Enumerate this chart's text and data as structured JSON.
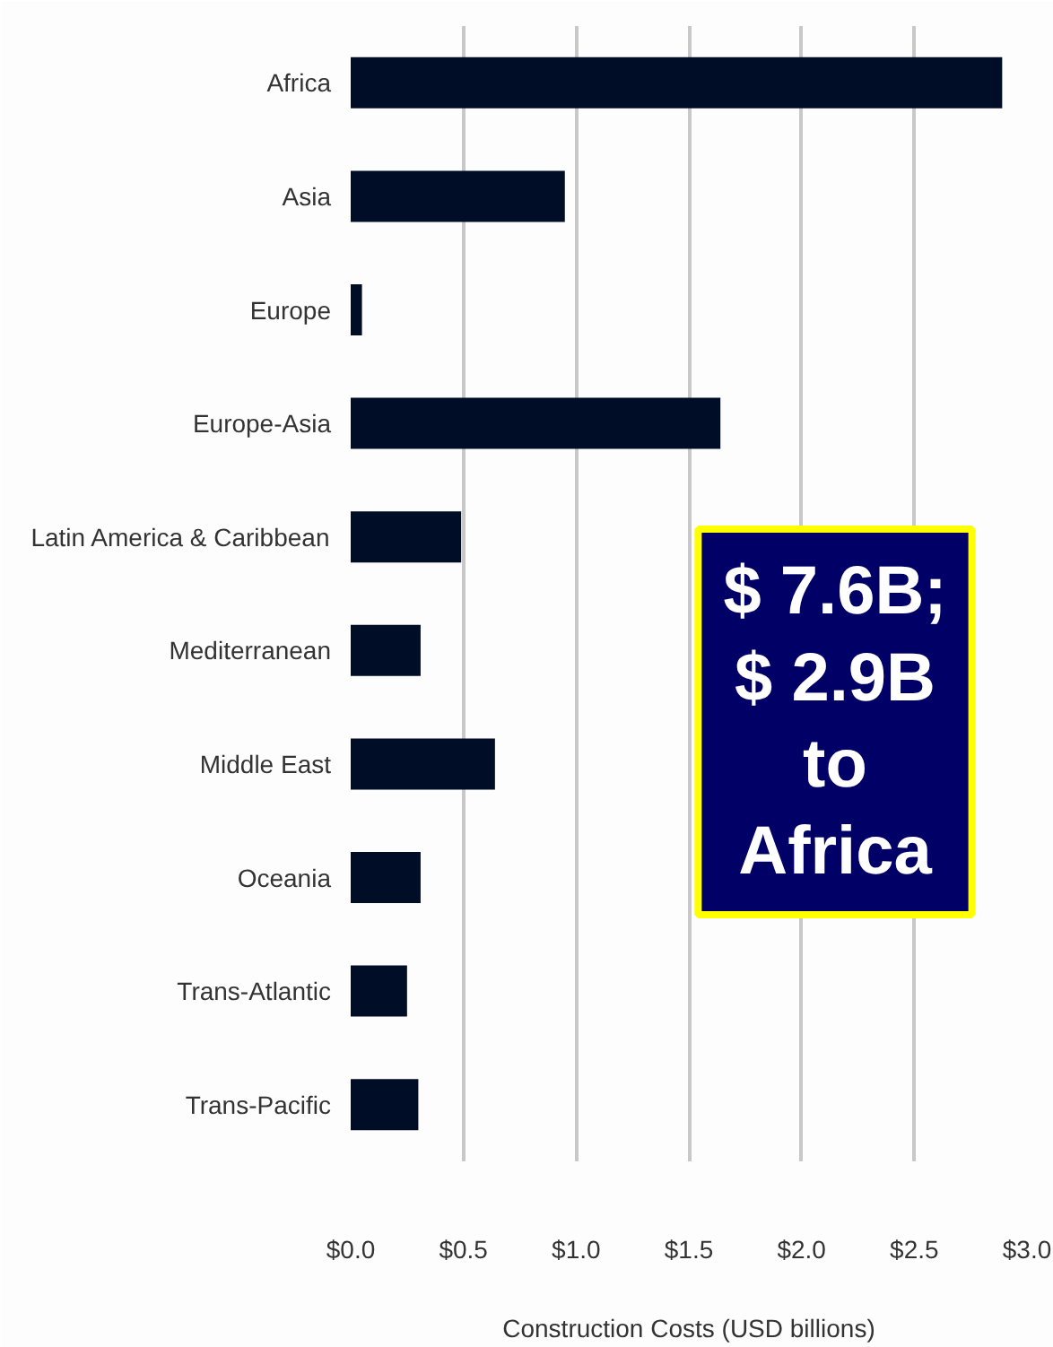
{
  "chart_data": {
    "type": "bar",
    "orientation": "horizontal",
    "categories": [
      "Africa",
      "Asia",
      "Europe",
      "Europe-Asia",
      "Latin America & Caribbean",
      "Mediterranean",
      "Middle East",
      "Oceania",
      "Trans-Atlantic",
      "Trans-Pacific"
    ],
    "values": [
      2.89,
      0.95,
      0.05,
      1.64,
      0.49,
      0.31,
      0.64,
      0.31,
      0.25,
      0.3
    ],
    "color": "#000d26",
    "xlabel": "Construction Costs (USD billions)",
    "xlim": [
      0,
      3.0
    ],
    "xticks": [
      {
        "value": 0,
        "label": "$0.0"
      },
      {
        "value": 0.5,
        "label": "$0.5"
      },
      {
        "value": 1.0,
        "label": "$1.0"
      },
      {
        "value": 1.5,
        "label": "$1.5"
      },
      {
        "value": 2.0,
        "label": "$2.0"
      },
      {
        "value": 2.5,
        "label": "$2.5"
      },
      {
        "value": 3.0,
        "label": "$3.0"
      }
    ],
    "grid": "x",
    "annotations": [
      "$ 7.6B;\n$ 2.9B\nto\nAfrica"
    ]
  }
}
